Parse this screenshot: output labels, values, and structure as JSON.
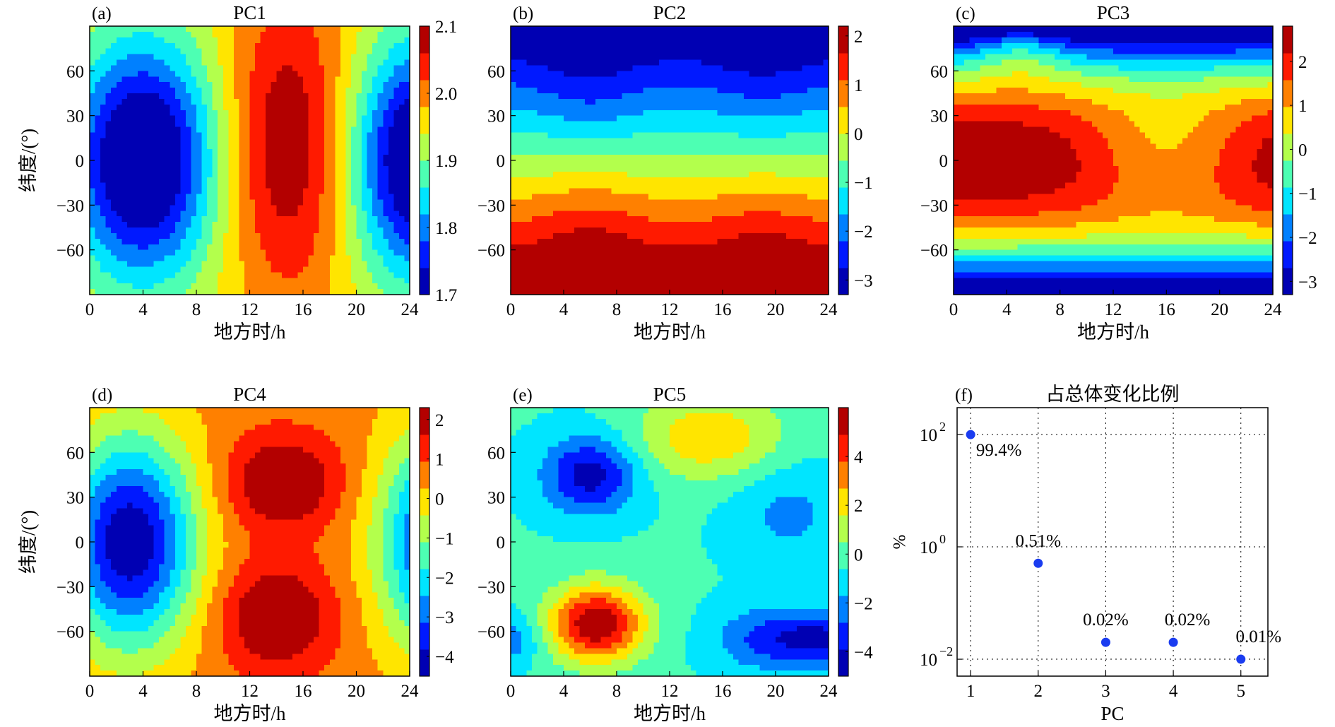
{
  "chart_data": [
    {
      "panel_label": "(a)",
      "title": "PC1",
      "type": "heatmap",
      "xlabel": "地方时/h",
      "ylabel": "纬度/(°)",
      "xlim": [
        0,
        24
      ],
      "ylim": [
        -90,
        90
      ],
      "xticks": [
        "0",
        "4",
        "8",
        "12",
        "16",
        "20",
        "24"
      ],
      "yticks": [
        "−60",
        "−30",
        "0",
        "30",
        "60"
      ],
      "colorbar": {
        "min": 1.7,
        "max": 2.1,
        "ticks": [
          "1.7",
          "1.8",
          "1.9",
          "2.0",
          "2.1"
        ],
        "unit": ""
      },
      "pattern": {
        "mean": 1.95,
        "centers": [
          {
            "t": 4,
            "lat": 0,
            "amp": -0.3,
            "st": 3.8,
            "sl": 55
          },
          {
            "t": 15,
            "lat": 10,
            "amp": 0.15,
            "st": 3.5,
            "sl": 75
          },
          {
            "t": 25,
            "lat": 0,
            "amp": -0.3,
            "st": 3.8,
            "sl": 55
          },
          {
            "t": -10,
            "lat": 10,
            "amp": 0.15,
            "st": 3.5,
            "sl": 75
          }
        ]
      }
    },
    {
      "panel_label": "(b)",
      "title": "PC2",
      "type": "heatmap",
      "xlabel": "地方时/h",
      "ylabel": "",
      "xlim": [
        0,
        24
      ],
      "ylim": [
        -90,
        90
      ],
      "xticks": [
        "0",
        "4",
        "8",
        "12",
        "16",
        "20",
        "24"
      ],
      "yticks": [
        "−60",
        "−30",
        "0",
        "30",
        "60"
      ],
      "colorbar": {
        "min": -3.3,
        "max": 2.2,
        "ticks": [
          "−3",
          "−2",
          "−1",
          "0",
          "1",
          "2"
        ],
        "unit": ""
      },
      "pattern": {
        "mean": -0.4,
        "lat_gradient": -0.034,
        "centers": [
          {
            "t": 6,
            "lat": 50,
            "amp": -0.5,
            "st": 3,
            "sl": 30
          },
          {
            "t": 19,
            "lat": 55,
            "amp": -0.4,
            "st": 3,
            "sl": 30
          },
          {
            "t": 6,
            "lat": -50,
            "amp": 0.5,
            "st": 3,
            "sl": 30
          },
          {
            "t": 19,
            "lat": -55,
            "amp": 0.4,
            "st": 3,
            "sl": 30
          }
        ]
      }
    },
    {
      "panel_label": "(c)",
      "title": "PC3",
      "type": "heatmap",
      "xlabel": "地方时/h",
      "ylabel": "",
      "xlim": [
        0,
        24
      ],
      "ylim": [
        -90,
        90
      ],
      "xticks": [
        "0",
        "4",
        "8",
        "12",
        "16",
        "20",
        "24"
      ],
      "yticks": [
        "−60",
        "−30",
        "0",
        "30",
        "60"
      ],
      "colorbar": {
        "min": -3.3,
        "max": 2.8,
        "ticks": [
          "−3",
          "−2",
          "−1",
          "0",
          "1",
          "2"
        ],
        "unit": ""
      },
      "pattern": {
        "mean": 2.8,
        "lat_quadratic": -0.0009,
        "centers": [
          {
            "t": 16,
            "lat": 5,
            "amp": -1.8,
            "st": 4.5,
            "sl": 30
          },
          {
            "t": 5,
            "lat": 75,
            "amp": 1.2,
            "st": 2.5,
            "sl": 15
          }
        ]
      }
    },
    {
      "panel_label": "(d)",
      "title": "PC4",
      "type": "heatmap",
      "xlabel": "地方时/h",
      "ylabel": "纬度/(°)",
      "xlim": [
        0,
        24
      ],
      "ylim": [
        -90,
        90
      ],
      "xticks": [
        "0",
        "4",
        "8",
        "12",
        "16",
        "20",
        "24"
      ],
      "yticks": [
        "−60",
        "−30",
        "0",
        "30",
        "60"
      ],
      "colorbar": {
        "min": -4.5,
        "max": 2.3,
        "ticks": [
          "−4",
          "−3",
          "−2",
          "−1",
          "0",
          "1",
          "2"
        ],
        "unit": ""
      },
      "pattern": {
        "mean": 0.6,
        "centers": [
          {
            "t": 3,
            "lat": 0,
            "amp": -5,
            "st": 3.5,
            "sl": 50
          },
          {
            "t": 27,
            "lat": 0,
            "amp": -5,
            "st": 3.5,
            "sl": 50
          },
          {
            "t": 14.5,
            "lat": 40,
            "amp": 2,
            "st": 3,
            "sl": 22
          },
          {
            "t": 14,
            "lat": -50,
            "amp": 2,
            "st": 3,
            "sl": 25
          }
        ]
      }
    },
    {
      "panel_label": "(e)",
      "title": "PC5",
      "type": "heatmap",
      "xlabel": "地方时/h",
      "ylabel": "",
      "xlim": [
        0,
        24
      ],
      "ylim": [
        -90,
        90
      ],
      "xticks": [
        "0",
        "4",
        "8",
        "12",
        "16",
        "20",
        "24"
      ],
      "yticks": [
        "−60",
        "−30",
        "0",
        "30",
        "60"
      ],
      "colorbar": {
        "min": -5,
        "max": 6,
        "ticks": [
          "−4",
          "−2",
          "0",
          "2",
          "4"
        ],
        "unit": "%"
      },
      "pattern": {
        "mean": -0.5,
        "centers": [
          {
            "t": 6,
            "lat": 45,
            "amp": -4,
            "st": 2.5,
            "sl": 18
          },
          {
            "t": 6.5,
            "lat": -55,
            "amp": 6.5,
            "st": 2.5,
            "sl": 18
          },
          {
            "t": 15,
            "lat": 70,
            "amp": 3,
            "st": 4,
            "sl": 20
          },
          {
            "t": 20,
            "lat": -65,
            "amp": -3,
            "st": 3,
            "sl": 15
          },
          {
            "t": 24,
            "lat": -65,
            "amp": -2.5,
            "st": 2,
            "sl": 12
          },
          {
            "t": 0,
            "lat": -65,
            "amp": -2,
            "st": 1.5,
            "sl": 12
          },
          {
            "t": 21,
            "lat": 20,
            "amp": -1.5,
            "st": 3,
            "sl": 25
          }
        ]
      }
    },
    {
      "panel_label": "(f)",
      "title": "占总体变化比例",
      "type": "scatter",
      "xlabel": "PC",
      "ylabel": "",
      "xlim": [
        0.8,
        5.4
      ],
      "yscale": "log",
      "ylim": [
        0.005,
        300
      ],
      "xticks": [
        "1",
        "2",
        "3",
        "4",
        "5"
      ],
      "ytick_bases": [
        "10",
        "10",
        "10"
      ],
      "ytick_exponents": [
        "2",
        "0",
        "−2"
      ],
      "grid": true,
      "x": [
        1,
        2,
        3,
        4,
        5
      ],
      "y": [
        99.4,
        0.51,
        0.02,
        0.02,
        0.01
      ],
      "point_labels": [
        "99.4%",
        "0.51%",
        "0.02%",
        "0.02%",
        "0.01%"
      ],
      "point_color": "#1a3cf0"
    }
  ]
}
